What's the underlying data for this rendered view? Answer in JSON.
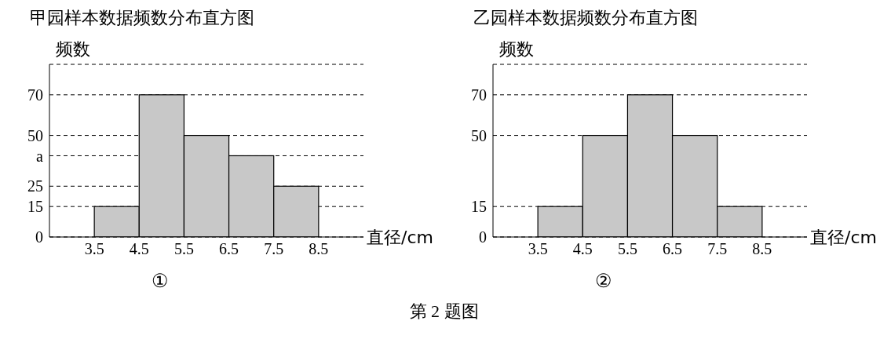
{
  "chart_data": [
    {
      "type": "histogram",
      "title": "甲园样本数据频数分布直方图",
      "xlabel": "直径/cm",
      "ylabel": "频数",
      "bins": [
        3.5,
        4.5,
        5.5,
        6.5,
        7.5,
        8.5
      ],
      "values": [
        15,
        70,
        50,
        40,
        25
      ],
      "color": "#c8c8c8",
      "xlim": [
        2.5,
        9.5
      ],
      "xticks": [
        3.5,
        4.5,
        5.5,
        6.5,
        7.5,
        8.5
      ],
      "ylim": [
        0,
        85
      ],
      "yticks": [
        0,
        15,
        25,
        {
          "value": 40,
          "label": "a"
        },
        50,
        70
      ],
      "grid": "y",
      "annotations": [
        "①"
      ]
    },
    {
      "type": "histogram",
      "title": "乙园样本数据频数分布直方图",
      "xlabel": "直径/cm",
      "ylabel": "频数",
      "bins": [
        3.5,
        4.5,
        5.5,
        6.5,
        7.5,
        8.5
      ],
      "values": [
        15,
        50,
        70,
        50,
        15
      ],
      "color": "#c8c8c8",
      "xlim": [
        2.5,
        9.5
      ],
      "xticks": [
        3.5,
        4.5,
        5.5,
        6.5,
        7.5,
        8.5
      ],
      "ylim": [
        0,
        85
      ],
      "yticks": [
        0,
        15,
        50,
        70
      ],
      "grid": "y",
      "annotations": [
        "②",
        "第 2 题图"
      ]
    }
  ]
}
